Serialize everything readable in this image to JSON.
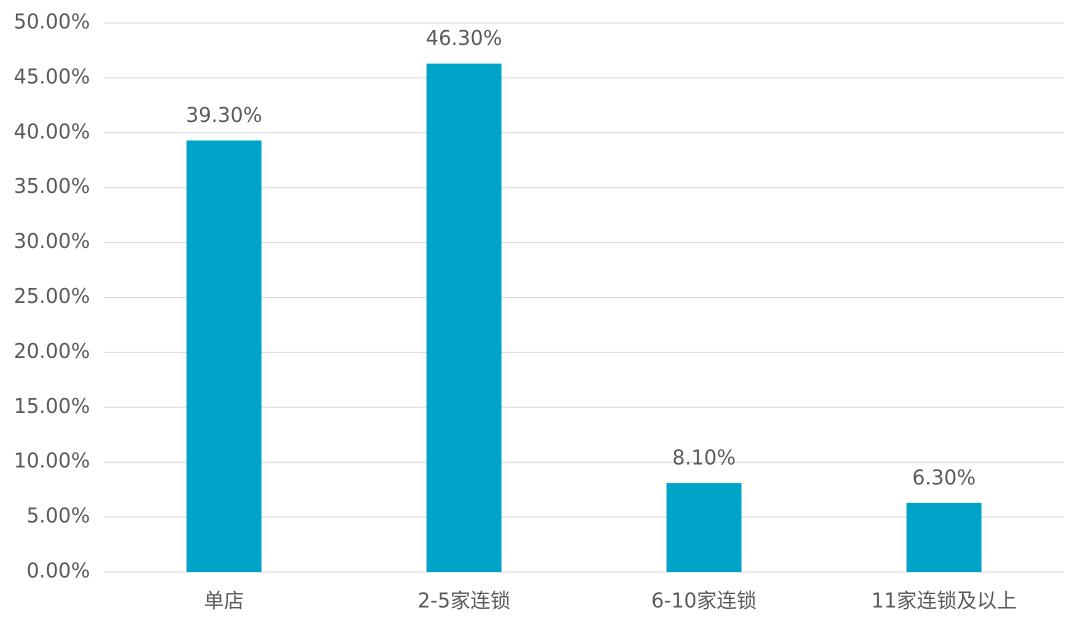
{
  "chart_data": {
    "type": "bar",
    "categories": [
      "单店",
      "2-5家连锁",
      "6-10家连锁",
      "11家连锁及以上"
    ],
    "values": [
      39.3,
      46.3,
      8.1,
      6.3
    ],
    "value_labels": [
      "39.30%",
      "46.30%",
      "8.10%",
      "6.30%"
    ],
    "color": "#00a3c8",
    "ylim": [
      0,
      50
    ],
    "yticks": [
      {
        "value": 0,
        "label": "0.00%"
      },
      {
        "value": 5,
        "label": "5.00%"
      },
      {
        "value": 10,
        "label": "10.00%"
      },
      {
        "value": 15,
        "label": "15.00%"
      },
      {
        "value": 20,
        "label": "20.00%"
      },
      {
        "value": 25,
        "label": "25.00%"
      },
      {
        "value": 30,
        "label": "30.00%"
      },
      {
        "value": 35,
        "label": "35.00%"
      },
      {
        "value": 40,
        "label": "40.00%"
      },
      {
        "value": 45,
        "label": "45.00%"
      },
      {
        "value": 50,
        "label": "50.00%"
      }
    ],
    "grid": true
  }
}
